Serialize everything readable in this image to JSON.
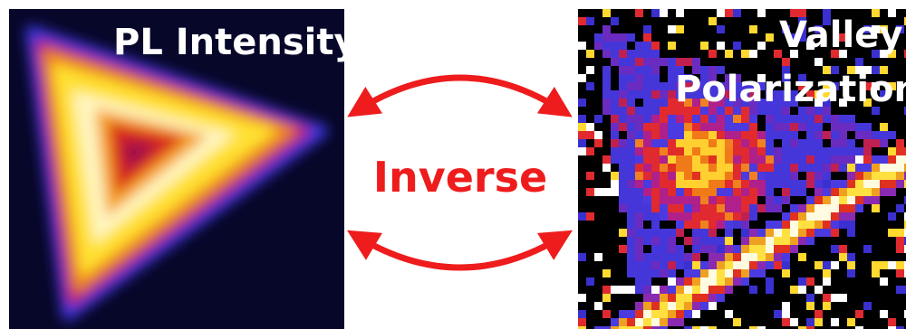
{
  "left_panel": {
    "label": "PL Intensity"
  },
  "center": {
    "label": "Inverse"
  },
  "right_panel": {
    "label_lines": [
      "Valley",
      "Polarization"
    ]
  }
}
